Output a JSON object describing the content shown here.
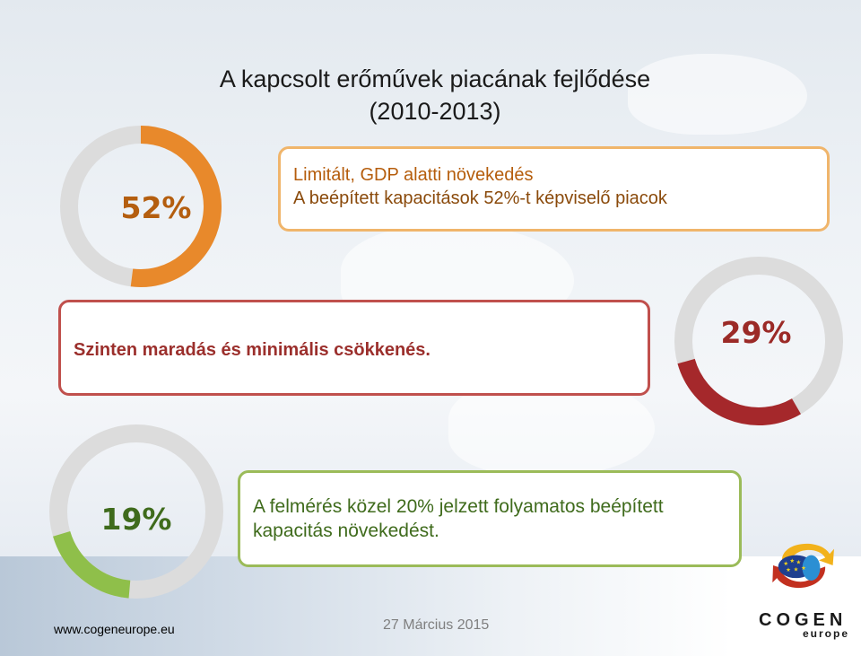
{
  "title": {
    "line1": "A kapcsolt erőművek piacának fejlődése",
    "line2": "(2010-2013)"
  },
  "colors": {
    "orange": "#e8892b",
    "red": "#a5282b",
    "green": "#8fbf4a",
    "ring_gray": "#dcdcdc"
  },
  "chart_data": [
    {
      "type": "pie",
      "label": "52%",
      "value": 52,
      "color": "#e8892b"
    },
    {
      "type": "pie",
      "label": "29%",
      "value": 29,
      "color": "#a5282b"
    },
    {
      "type": "pie",
      "label": "19%",
      "value": 19,
      "color": "#8fbf4a"
    }
  ],
  "boxes": {
    "box1": {
      "heading": "Limitált, GDP alatti növekedés",
      "text": "A beépített kapacitások 52%-t képviselő piacok"
    },
    "box2": {
      "heading": "Szinten maradás és minimális csökkenés."
    },
    "box3": {
      "text_line1": "A felmérés közel 20% jelzett folyamatos beépített",
      "text_line2": "kapacitás növekedést."
    }
  },
  "footer": {
    "url": "www.cogeneurope.eu",
    "date": "27 Március 2015"
  },
  "logo": {
    "name": "COGEN",
    "sub": "europe"
  }
}
